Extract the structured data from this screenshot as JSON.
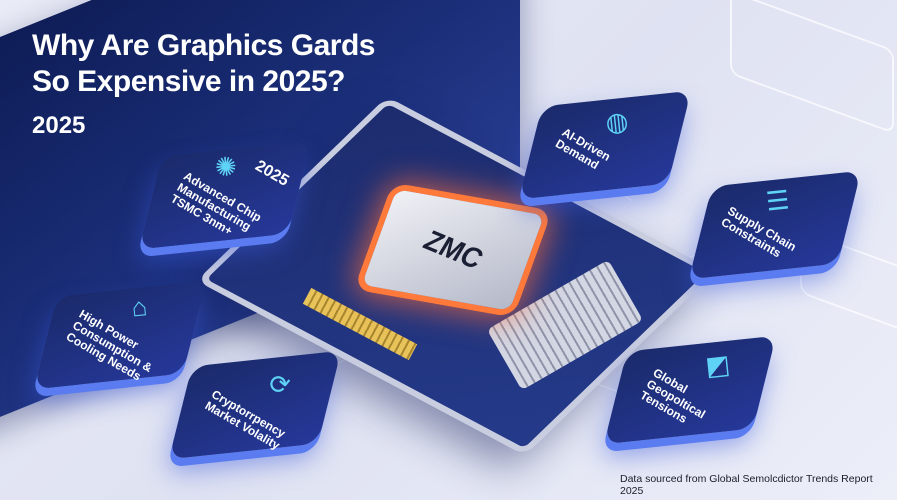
{
  "title_line1": "Why Are Graphics Gards",
  "title_line2": "So Expensive in 2025?",
  "subtitle": "2025",
  "chip_label": "ZMC",
  "cards": [
    {
      "lines": [
        "Advanced Chip",
        "Manufacturing",
        "TSMC 3nm+"
      ],
      "badge": "2025",
      "icon": "gear-icon"
    },
    {
      "lines": [
        "AI-Driven",
        "Demand"
      ],
      "icon": "ring-icon"
    },
    {
      "lines": [
        "Supply Chain",
        "Constraints"
      ],
      "icon": "stack-icon"
    },
    {
      "lines": [
        "High Power",
        "Consumption &",
        "Cooling Needs"
      ],
      "icon": "arch-icon"
    },
    {
      "lines": [
        "Cryptorrpency",
        "Market Volality"
      ],
      "icon": "exchange-icon"
    },
    {
      "lines": [
        "Global",
        "Geopoltical",
        "Tensions"
      ],
      "icon": "chart-icon"
    }
  ],
  "footer": "Data sourced from Global Semolcdictor Trends Report 2025",
  "colors": {
    "panel": "#1b2f7a",
    "accent": "#5fd3f5",
    "glow": "#ff7a3a"
  }
}
